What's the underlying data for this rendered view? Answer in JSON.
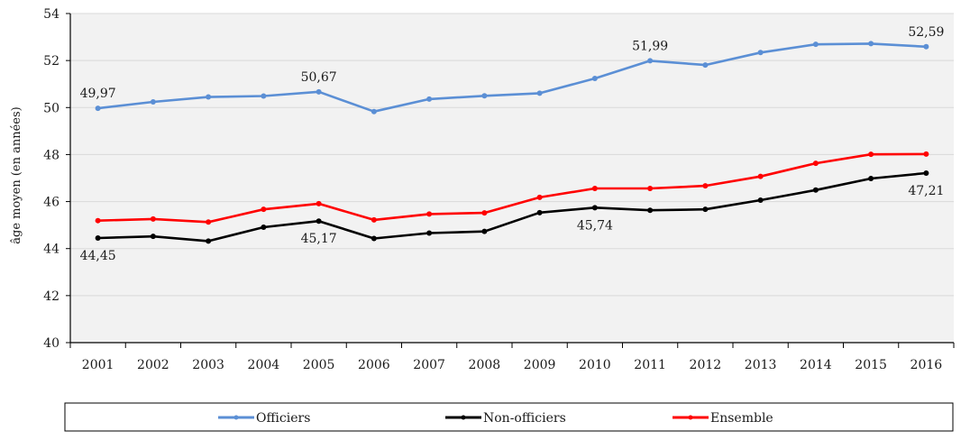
{
  "chart_data": {
    "type": "line",
    "title": "",
    "xlabel": "",
    "ylabel": "âge moyen (en années)",
    "ylim": [
      40,
      54
    ],
    "yticks": [
      40,
      42,
      44,
      46,
      48,
      50,
      52,
      54
    ],
    "ytick_labels": [
      "40",
      "42",
      "44",
      "46",
      "48",
      "50",
      "52",
      "54"
    ],
    "grid": true,
    "legend_position": "bottom",
    "categories": [
      "2001",
      "2002",
      "2003",
      "2004",
      "2005",
      "2006",
      "2007",
      "2008",
      "2009",
      "2010",
      "2011",
      "2012",
      "2013",
      "2014",
      "2015",
      "2016"
    ],
    "series": [
      {
        "name": "Officiers",
        "color": "#5b8fd5",
        "values": [
          49.97,
          50.24,
          50.45,
          50.49,
          50.67,
          49.83,
          50.36,
          50.5,
          50.61,
          51.24,
          51.99,
          51.81,
          52.34,
          52.69,
          52.72,
          52.59
        ],
        "annotations": [
          {
            "index": 0,
            "text": "49,97",
            "position": "above"
          },
          {
            "index": 4,
            "text": "50,67",
            "position": "above"
          },
          {
            "index": 10,
            "text": "51,99",
            "position": "above"
          },
          {
            "index": 15,
            "text": "52,59",
            "position": "above"
          }
        ]
      },
      {
        "name": "Non-officiers",
        "color": "#000000",
        "values": [
          44.45,
          44.52,
          44.32,
          44.91,
          45.17,
          44.43,
          44.66,
          44.73,
          45.53,
          45.74,
          45.63,
          45.67,
          46.06,
          46.49,
          46.98,
          47.21
        ],
        "annotations": [
          {
            "index": 0,
            "text": "44,45",
            "position": "below"
          },
          {
            "index": 4,
            "text": "45,17",
            "position": "below"
          },
          {
            "index": 9,
            "text": "45,74",
            "position": "below"
          },
          {
            "index": 15,
            "text": "47,21",
            "position": "below"
          }
        ]
      },
      {
        "name": "Ensemble",
        "color": "#ff0000",
        "values": [
          45.19,
          45.26,
          45.13,
          45.67,
          45.91,
          45.22,
          45.47,
          45.52,
          46.18,
          46.56,
          46.56,
          46.67,
          47.07,
          47.63,
          48.01,
          48.02
        ],
        "annotations": []
      }
    ],
    "plot_background": "#f2f2f2",
    "gridline_color": "#d9d9d9"
  }
}
